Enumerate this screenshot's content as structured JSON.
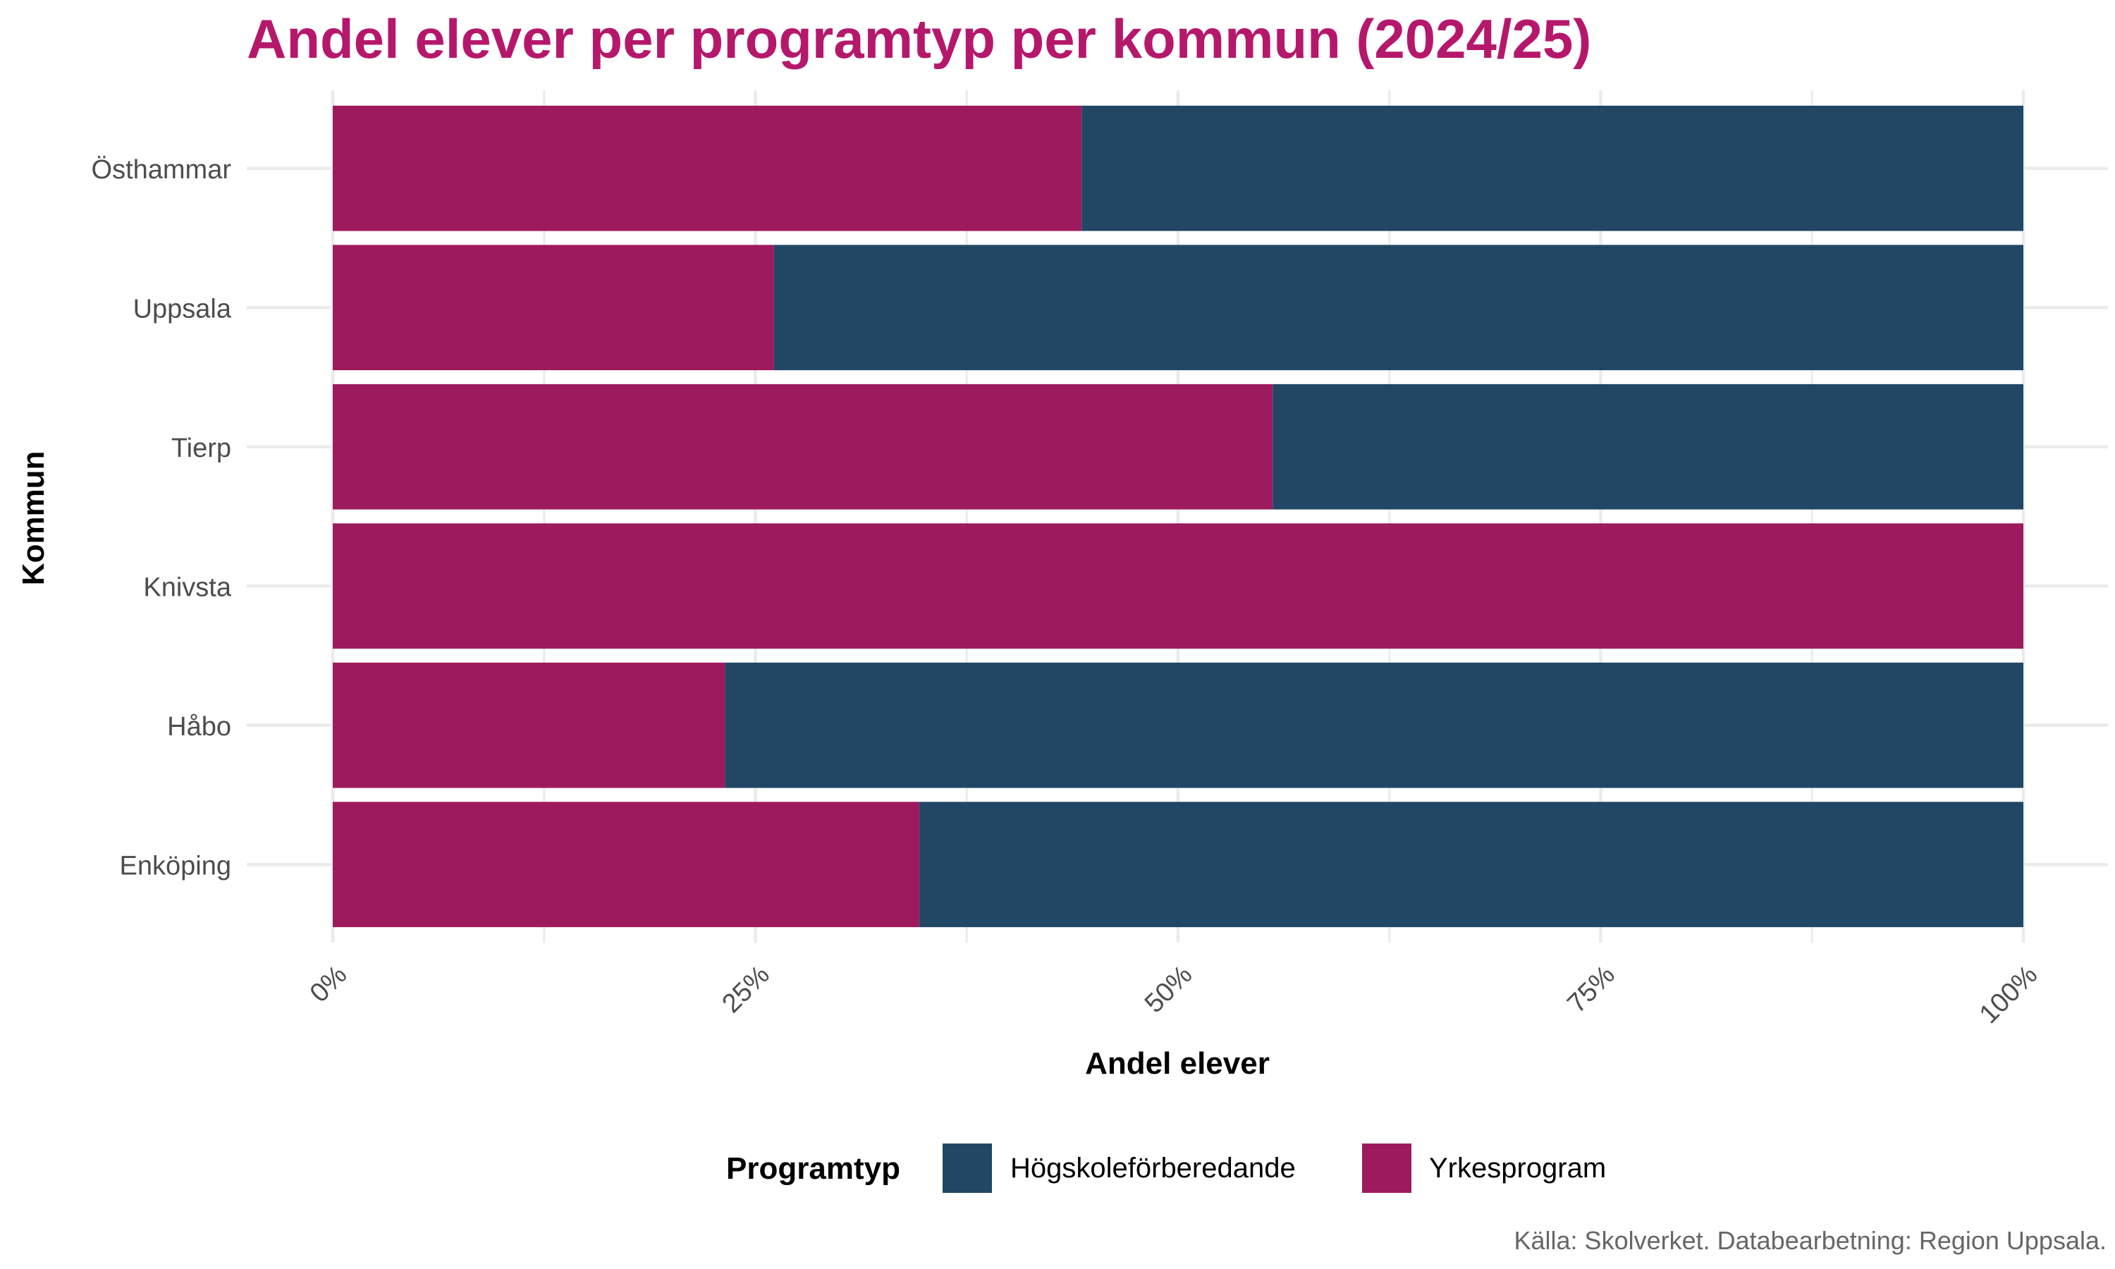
{
  "colors": {
    "title": "#B5186B",
    "yrkesprogram": "#9E1A5E",
    "hogskole": "#214765",
    "grid": "#EBEBEB",
    "tick_text": "#4D4D4D",
    "axis_title": "#000000",
    "caption": "#666666"
  },
  "chart_data": {
    "type": "bar",
    "orientation": "horizontal",
    "stacked": "percent",
    "title": "Andel elever per programtyp per kommun (2024/25)",
    "xlabel": "Andel elever",
    "ylabel": "Kommun",
    "xlim": [
      0,
      1
    ],
    "x_ticks": [
      0,
      0.25,
      0.5,
      0.75,
      1.0
    ],
    "x_tick_labels": [
      "0%",
      "25%",
      "50%",
      "75%",
      "100%"
    ],
    "categories": [
      "Östhammar",
      "Uppsala",
      "Tierp",
      "Knivsta",
      "Håbo",
      "Enköping"
    ],
    "series": [
      {
        "name": "Yrkesprogram",
        "color_key": "yrkesprogram",
        "values": [
          0.443,
          0.261,
          0.556,
          1.0,
          0.232,
          0.347
        ]
      },
      {
        "name": "Högskoleförberedande",
        "color_key": "hogskole",
        "values": [
          0.557,
          0.739,
          0.444,
          0.0,
          0.768,
          0.653
        ]
      }
    ],
    "grid": true,
    "legend": {
      "title": "Programtyp",
      "position": "bottom",
      "items": [
        "Högskoleförberedande",
        "Yrkesprogram"
      ]
    },
    "caption": "Källa: Skolverket. Databearbetning: Region Uppsala."
  }
}
